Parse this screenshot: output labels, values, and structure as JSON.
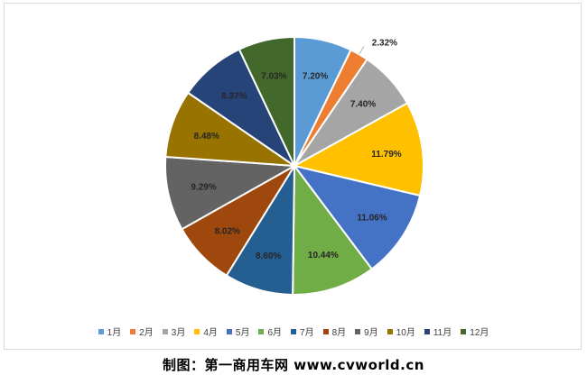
{
  "chart_data": {
    "type": "pie",
    "categories": [
      "1月",
      "2月",
      "3月",
      "4月",
      "5月",
      "6月",
      "7月",
      "8月",
      "9月",
      "10月",
      "11月",
      "12月"
    ],
    "values": [
      7.2,
      2.32,
      7.4,
      11.79,
      11.06,
      10.44,
      8.6,
      8.02,
      9.29,
      8.48,
      8.37,
      7.03
    ],
    "labels": [
      "7.20%",
      "2.32%",
      "7.40%",
      "11.79%",
      "11.06%",
      "10.44%",
      "8.60%",
      "8.02%",
      "9.29%",
      "8.48%",
      "8.37%",
      "7.03%"
    ],
    "colors": [
      "#5b9bd5",
      "#ed7d31",
      "#a5a5a5",
      "#ffc000",
      "#4472c4",
      "#70ad47",
      "#255e91",
      "#9e480e",
      "#636363",
      "#997300",
      "#264478",
      "#43682b"
    ],
    "legend_position": "bottom"
  },
  "caption": "制图：第一商用车网 www.cvworld.cn"
}
